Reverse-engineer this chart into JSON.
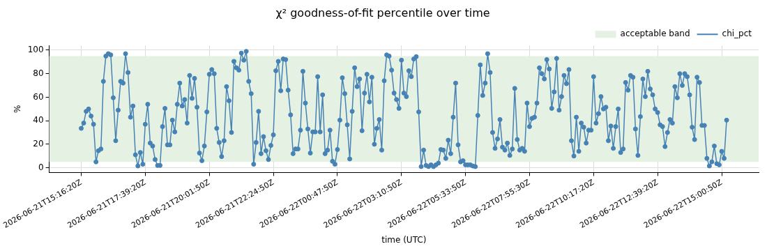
{
  "chart_data": {
    "type": "line",
    "title": "χ² goodness-of-fit percentile over time",
    "xlabel": "time (UTC)",
    "ylabel": "%",
    "categories": [
      "2026-06-21T15:16:20Z",
      null,
      null,
      null,
      null,
      null,
      null,
      null,
      null,
      null,
      null,
      null,
      null,
      null,
      null,
      null,
      null,
      null,
      null,
      null,
      null,
      null,
      null,
      null,
      null,
      null,
      "2026-06-21T17:39:20Z",
      null,
      null,
      null,
      null,
      null,
      null,
      null,
      null,
      null,
      null,
      null,
      null,
      null,
      null,
      null,
      null,
      null,
      null,
      null,
      null,
      null,
      null,
      null,
      null,
      null,
      "2026-06-21T20:01:50Z",
      null,
      null,
      null,
      null,
      null,
      null,
      null,
      null,
      null,
      null,
      null,
      null,
      null,
      null,
      null,
      null,
      null,
      null,
      null,
      null,
      null,
      null,
      null,
      null,
      null,
      "2026-06-21T22:24:50Z",
      null,
      null,
      null,
      null,
      null,
      null,
      null,
      null,
      null,
      null,
      null,
      null,
      null,
      null,
      null,
      null,
      null,
      null,
      null,
      null,
      null,
      null,
      null,
      null,
      null,
      "2026-06-22T00:47:50Z",
      null,
      null,
      null,
      null,
      null,
      null,
      null,
      null,
      null,
      null,
      null,
      null,
      null,
      null,
      null,
      null,
      null,
      null,
      null,
      null,
      null,
      null,
      null,
      null,
      null,
      "2026-06-22T03:10:50Z",
      null,
      null,
      null,
      null,
      null,
      null,
      null,
      null,
      null,
      null,
      null,
      null,
      null,
      null,
      null,
      null,
      null,
      null,
      null,
      null,
      null,
      null,
      null,
      null,
      null,
      "2026-06-22T05:33:50Z",
      null,
      null,
      null,
      null,
      null,
      null,
      null,
      null,
      null,
      null,
      null,
      null,
      null,
      null,
      null,
      null,
      null,
      null,
      null,
      null,
      null,
      null,
      null,
      null,
      null,
      "2026-06-22T07:55:30Z",
      null,
      null,
      null,
      null,
      null,
      null,
      null,
      null,
      null,
      null,
      null,
      null,
      null,
      null,
      null,
      null,
      null,
      null,
      null,
      null,
      null,
      null,
      null,
      null,
      null,
      "2026-06-22T10:17:20Z",
      null,
      null,
      null,
      null,
      null,
      null,
      null,
      null,
      null,
      null,
      null,
      null,
      null,
      null,
      null,
      null,
      null,
      null,
      null,
      null,
      null,
      null,
      null,
      null,
      null,
      "2026-06-22T12:39:20Z",
      null,
      null,
      null,
      null,
      null,
      null,
      null,
      null,
      null,
      null,
      null,
      null,
      null,
      null,
      null,
      null,
      null,
      null,
      null,
      null,
      null,
      null,
      null,
      null,
      null,
      "2026-06-22T15:00:50Z",
      null,
      null
    ],
    "series": [
      {
        "name": "chi_pct",
        "color": "#4682b4",
        "values": [
          33.5,
          38,
          48,
          50,
          44,
          37,
          5,
          14.5,
          16,
          73.5,
          95,
          97,
          96,
          59.5,
          23,
          49,
          73.5,
          72,
          97,
          81,
          43,
          52.5,
          11,
          1.5,
          13,
          3,
          37,
          54,
          21,
          18.5,
          7,
          2,
          2,
          35,
          50.5,
          19.5,
          19.5,
          40.5,
          30.5,
          54,
          72,
          52.5,
          58,
          38,
          78.5,
          59,
          76,
          51.5,
          12.5,
          6,
          18.5,
          47.5,
          79.5,
          83.5,
          80,
          33.5,
          21.5,
          9.5,
          23,
          69,
          57,
          30,
          90.5,
          85,
          83,
          97.5,
          91.5,
          99,
          73.5,
          63,
          3,
          21.5,
          48,
          12,
          26.5,
          14.5,
          7,
          19,
          28,
          82.5,
          90.5,
          65.5,
          92.5,
          92,
          66,
          45,
          12,
          16,
          16,
          32,
          82,
          55,
          33,
          12.5,
          30.5,
          30.5,
          77.5,
          30.5,
          62,
          12,
          15,
          32,
          5.5,
          3,
          15.5,
          40.5,
          76.5,
          63,
          36.5,
          7.5,
          48,
          85,
          69,
          75.5,
          31.5,
          63.5,
          79.5,
          56,
          77,
          20,
          33.5,
          41,
          15,
          74,
          96,
          95,
          83,
          63.5,
          58,
          50.5,
          91.5,
          63.5,
          60.5,
          82.5,
          77.5,
          92.5,
          94.5,
          47.5,
          1,
          15,
          2,
          1,
          2.5,
          1,
          2.5,
          4,
          15.5,
          15,
          8,
          23.5,
          12,
          43,
          72,
          19.5,
          5,
          6,
          2.5,
          2.5,
          2.5,
          1.5,
          1,
          44.5,
          87.5,
          61.5,
          72,
          97,
          81,
          30,
          16.5,
          24.5,
          41,
          17.5,
          15,
          21,
          10.5,
          16,
          67.5,
          24,
          15,
          16.5,
          14,
          55,
          35,
          42,
          43,
          55,
          85,
          80,
          75.5,
          92,
          84,
          50.5,
          64.5,
          93,
          49,
          60.5,
          78.5,
          71.5,
          83.5,
          23,
          10,
          43,
          14,
          38,
          34.5,
          21,
          32,
          32,
          77.5,
          38,
          46,
          60.5,
          50,
          51.5,
          23,
          35.5,
          16.5,
          35,
          50,
          13,
          16,
          72.5,
          66,
          78.5,
          77,
          33,
          10.5,
          43.5,
          75.5,
          60.5,
          82,
          67,
          62,
          50,
          47,
          36.5,
          35,
          18,
          30,
          41,
          38,
          69,
          59.5,
          80,
          70,
          80,
          77.5,
          62,
          34.5,
          24,
          77,
          72.5,
          36,
          36,
          8,
          1.5,
          5,
          18.5,
          3.5,
          2.5,
          14,
          8,
          40.5
        ]
      }
    ],
    "bands": [
      {
        "axis": "y",
        "from": 5,
        "to": 95,
        "label": "acceptable band",
        "color": "#e5f1e3"
      }
    ],
    "ylim": [
      -4,
      104
    ],
    "yticks": [
      0,
      20,
      40,
      60,
      80,
      100
    ],
    "grid": true,
    "legend": "top right",
    "marker": "circle",
    "line_style": "solid"
  }
}
